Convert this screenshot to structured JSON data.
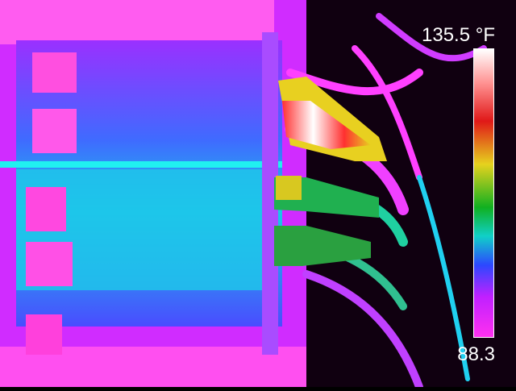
{
  "thermal": {
    "max_label": "135.5 °F",
    "min_label": "88.3",
    "palette": [
      "#ffffff",
      "#ff2a20",
      "#e8d020",
      "#10b020",
      "#10d0d0",
      "#3040ff",
      "#c020ff",
      "#ff30e0"
    ]
  }
}
